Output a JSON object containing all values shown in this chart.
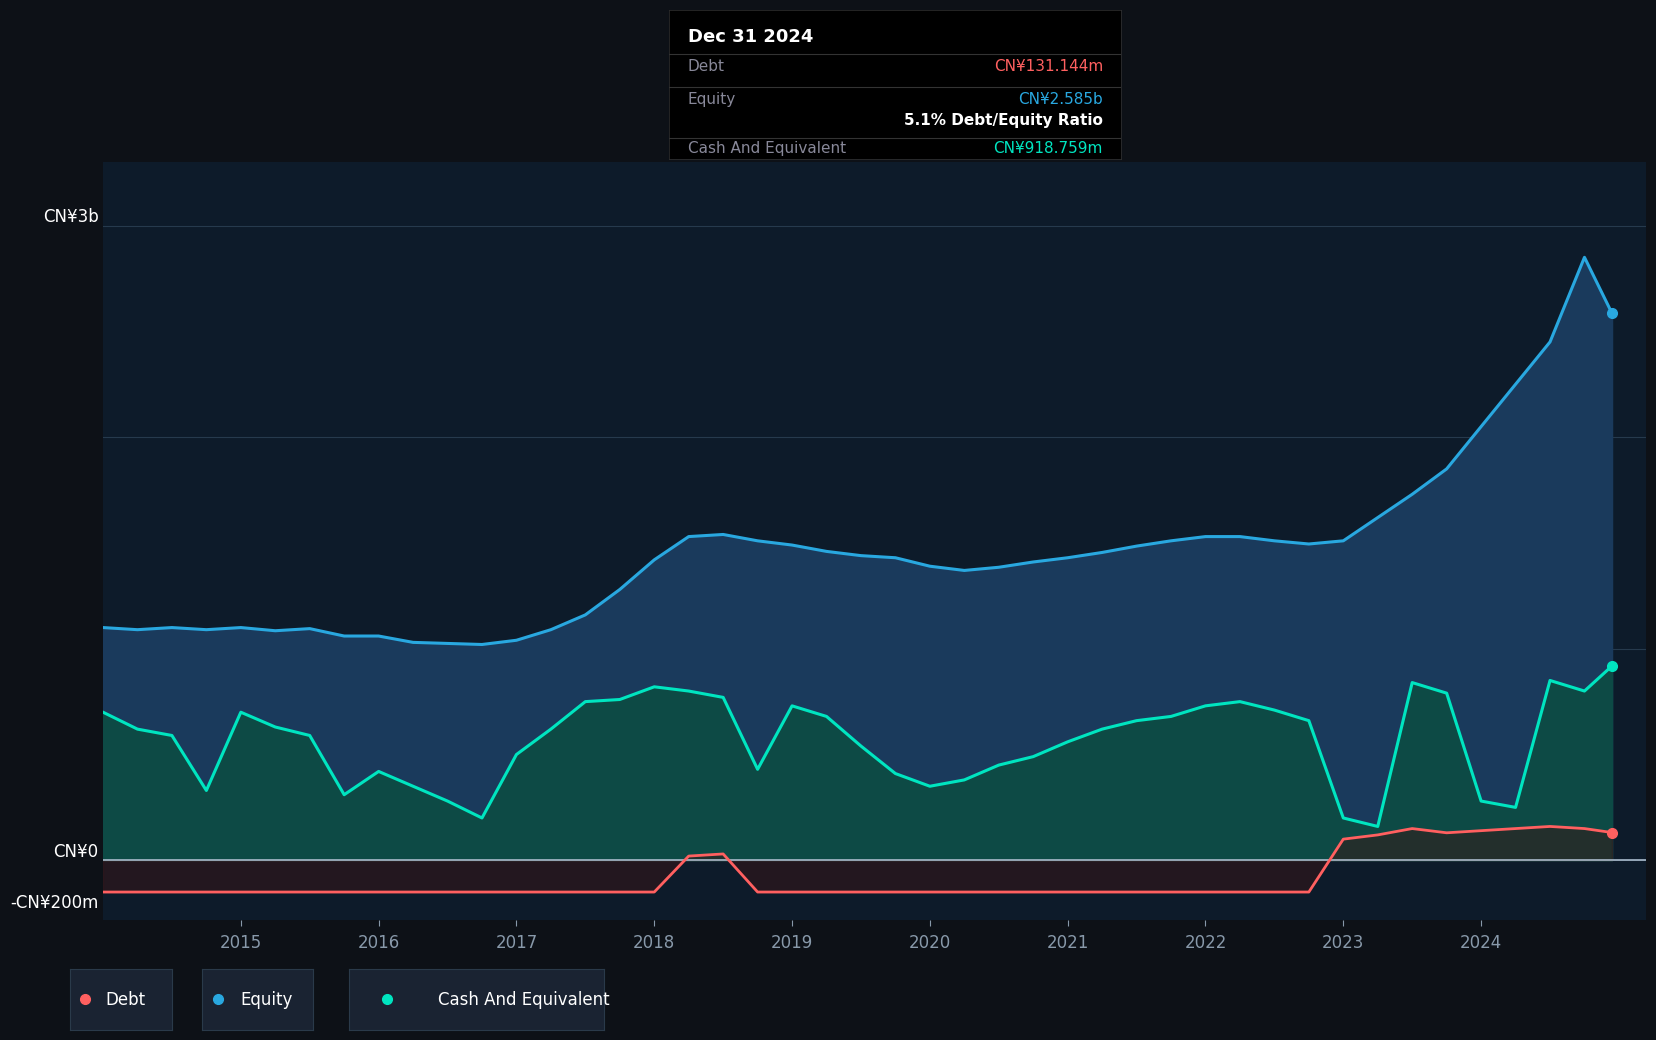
{
  "bg_color": "#0d1117",
  "plot_bg_color": "#0d1b2a",
  "grid_color": "#263a4d",
  "ylabel_3b": "CN¥3b",
  "ylabel_0": "CN¥0",
  "ylabel_neg200m": "-CN¥200m",
  "ylim_min": -280000000,
  "ylim_max": 3300000000,
  "equity_color": "#29a8e0",
  "cash_color": "#00e5c0",
  "debt_color": "#ff6060",
  "equity_fill": "#1a3a5c",
  "cash_fill": "#0d4a45",
  "debt_fill": "#3a1515",
  "tooltip_bg": "#000000",
  "tooltip_title": "Dec 31 2024",
  "tooltip_debt_label": "Debt",
  "tooltip_debt_value": "CN¥131.144m",
  "tooltip_equity_label": "Equity",
  "tooltip_equity_value": "CN¥2.585b",
  "tooltip_ratio": "5.1% Debt/Equity Ratio",
  "tooltip_cash_label": "Cash And Equivalent",
  "tooltip_cash_value": "CN¥918.759m",
  "legend_items": [
    "Debt",
    "Equity",
    "Cash And Equivalent"
  ],
  "x_dates": [
    2014.0,
    2014.25,
    2014.5,
    2014.75,
    2015.0,
    2015.25,
    2015.5,
    2015.75,
    2016.0,
    2016.25,
    2016.5,
    2016.75,
    2017.0,
    2017.25,
    2017.5,
    2017.75,
    2018.0,
    2018.25,
    2018.5,
    2018.75,
    2019.0,
    2019.25,
    2019.5,
    2019.75,
    2020.0,
    2020.25,
    2020.5,
    2020.75,
    2021.0,
    2021.25,
    2021.5,
    2021.75,
    2022.0,
    2022.25,
    2022.5,
    2022.75,
    2023.0,
    2023.25,
    2023.5,
    2023.75,
    2024.0,
    2024.25,
    2024.5,
    2024.75,
    2024.95
  ],
  "equity_values": [
    1100000000,
    1090000000,
    1100000000,
    1090000000,
    1100000000,
    1085000000,
    1095000000,
    1060000000,
    1060000000,
    1030000000,
    1025000000,
    1020000000,
    1040000000,
    1090000000,
    1160000000,
    1280000000,
    1420000000,
    1530000000,
    1540000000,
    1510000000,
    1490000000,
    1460000000,
    1440000000,
    1430000000,
    1390000000,
    1370000000,
    1385000000,
    1410000000,
    1430000000,
    1455000000,
    1485000000,
    1510000000,
    1530000000,
    1530000000,
    1510000000,
    1495000000,
    1510000000,
    1620000000,
    1730000000,
    1850000000,
    2050000000,
    2250000000,
    2450000000,
    2850000000,
    2585000000
  ],
  "cash_values": [
    700000000,
    620000000,
    590000000,
    330000000,
    700000000,
    630000000,
    590000000,
    310000000,
    420000000,
    350000000,
    280000000,
    200000000,
    500000000,
    620000000,
    750000000,
    760000000,
    820000000,
    800000000,
    770000000,
    430000000,
    730000000,
    680000000,
    540000000,
    410000000,
    350000000,
    380000000,
    450000000,
    490000000,
    560000000,
    620000000,
    660000000,
    680000000,
    730000000,
    750000000,
    710000000,
    660000000,
    200000000,
    160000000,
    840000000,
    790000000,
    280000000,
    250000000,
    850000000,
    800000000,
    918759000
  ],
  "debt_values": [
    -150000000,
    -150000000,
    -150000000,
    -150000000,
    -150000000,
    -150000000,
    -150000000,
    -150000000,
    -150000000,
    -150000000,
    -150000000,
    -150000000,
    -150000000,
    -150000000,
    -150000000,
    -150000000,
    -150000000,
    20000000,
    30000000,
    -150000000,
    -150000000,
    -150000000,
    -150000000,
    -150000000,
    -150000000,
    -150000000,
    -150000000,
    -150000000,
    -150000000,
    -150000000,
    -150000000,
    -150000000,
    -150000000,
    -150000000,
    -150000000,
    -150000000,
    100000000,
    120000000,
    150000000,
    130000000,
    140000000,
    150000000,
    160000000,
    150000000,
    131144000
  ],
  "x_tick_positions": [
    2015,
    2016,
    2017,
    2018,
    2019,
    2020,
    2021,
    2022,
    2023,
    2024
  ],
  "x_tick_labels": [
    "2015",
    "2016",
    "2017",
    "2018",
    "2019",
    "2020",
    "2021",
    "2022",
    "2023",
    "2024"
  ]
}
